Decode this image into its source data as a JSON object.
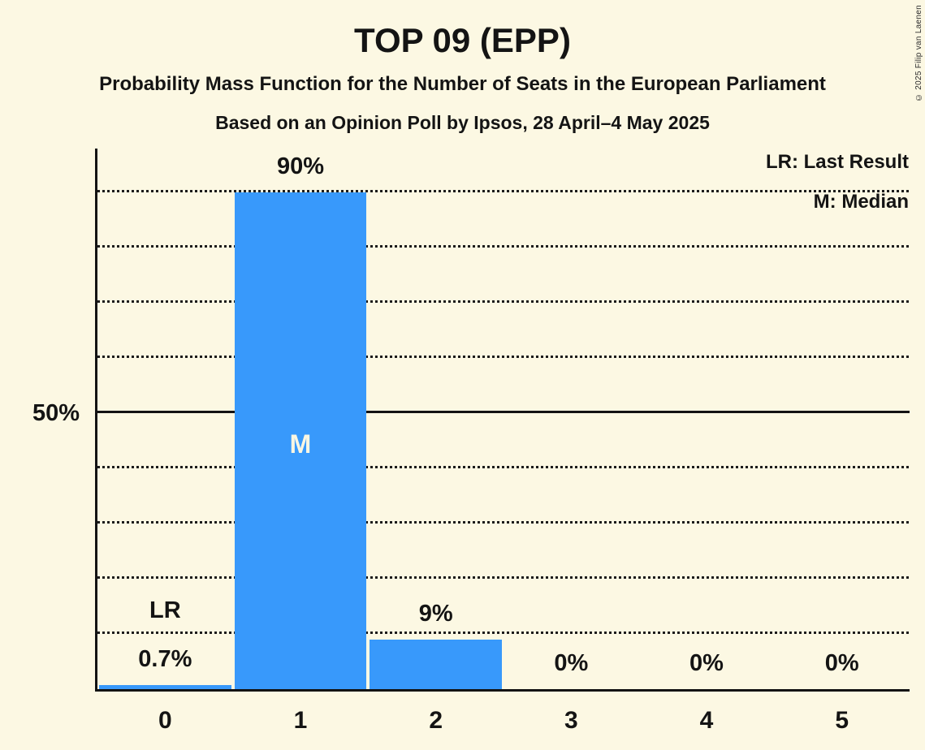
{
  "header": {
    "title": "TOP 09 (EPP)",
    "subtitle1": "Probability Mass Function for the Number of Seats in the European Parliament",
    "subtitle2": "Based on an Opinion Poll by Ipsos, 28 April–4 May 2025"
  },
  "copyright": "© 2025 Filip van Laenen",
  "legend": {
    "last_result": "LR: Last Result",
    "median": "M: Median"
  },
  "colors": {
    "background": "#FCF8E3",
    "bar": "#3899FB",
    "text": "#141414",
    "grid": "#1b1b1b",
    "marker_inside_bar": "#FAF6E2"
  },
  "chart_data": {
    "type": "bar",
    "title": "TOP 09 (EPP)",
    "xlabel": "",
    "ylabel": "",
    "categories": [
      "0",
      "1",
      "2",
      "3",
      "4",
      "5"
    ],
    "values": [
      0.7,
      90,
      9,
      0,
      0,
      0
    ],
    "bar_labels": [
      "0.7%",
      "90%",
      "9%",
      "0%",
      "0%",
      "0%"
    ],
    "ylim": [
      0,
      100
    ],
    "ytick_labels": [
      {
        "pct": 50,
        "label": "50%"
      }
    ],
    "gridlines_pct": [
      10,
      20,
      30,
      40,
      50,
      60,
      70,
      80,
      90
    ],
    "solid_gridline_pct": 50,
    "grid": "dotted",
    "legend_position": "top-right",
    "annotations": {
      "last_result_marker": "LR",
      "last_result_index": 0,
      "median_marker": "M",
      "median_index": 1
    }
  }
}
